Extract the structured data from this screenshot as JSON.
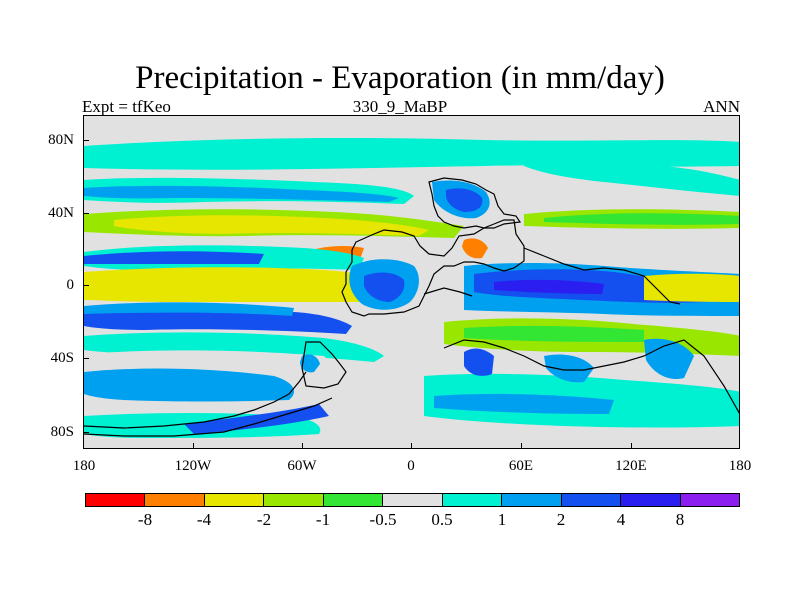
{
  "title": "Precipitation - Evaporation (in mm/day)",
  "subtitle_left": "Expt = tfKeo",
  "subtitle_center": "330_9_MaBP",
  "subtitle_right": "ANN",
  "map": {
    "projection": "cylindrical equidistant",
    "lon_range": [
      -180,
      180
    ],
    "lat_range": [
      -90,
      90
    ],
    "y_ticks": [
      "80N",
      "40N",
      "0",
      "40S",
      "80S"
    ],
    "x_ticks": [
      "180",
      "120W",
      "60W",
      "0",
      "60E",
      "120E",
      "180"
    ],
    "background_color": "#e1e1e1",
    "coastline_color": "#000000"
  },
  "colorbar": {
    "labels": [
      "-8",
      "-4",
      "-2",
      "-1",
      "-0.5",
      "0.5",
      "1",
      "2",
      "4",
      "8"
    ],
    "colors": [
      "#ff0000",
      "#ff8000",
      "#e6e600",
      "#99e600",
      "#33e633",
      "#e1e1e1",
      "#00f0d2",
      "#00a0f0",
      "#1450f0",
      "#2a1ef0",
      "#8c1ef0"
    ]
  }
}
